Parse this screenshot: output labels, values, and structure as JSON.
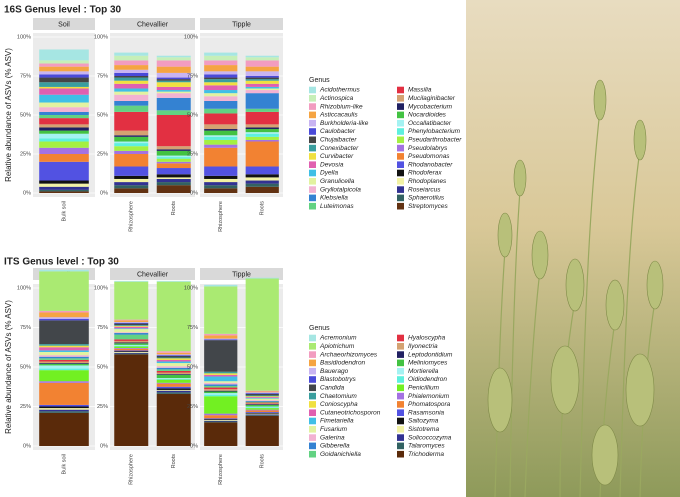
{
  "chart_data": [
    {
      "type": "bar",
      "stacked": true,
      "title": "16S Genus level : Top 30",
      "ylabel": "Relative abundance of ASVs (% ASV)",
      "legend_title": "Genus",
      "facets": [
        {
          "name": "Soil",
          "categories": [
            "Bulk soil"
          ]
        },
        {
          "name": "Chevallier",
          "categories": [
            "Rhizosphere",
            "Roots"
          ]
        },
        {
          "name": "Tipple",
          "categories": [
            "Rhizosphere",
            "Roots"
          ]
        }
      ],
      "ylim": [
        0,
        100
      ],
      "yticks": [
        {
          "value": 0,
          "label": "0%"
        },
        {
          "value": 25,
          "label": "25%"
        },
        {
          "value": 50,
          "label": "50%"
        },
        {
          "value": 75,
          "label": "75%"
        },
        {
          "value": 100,
          "label": "100%"
        }
      ],
      "series": [
        {
          "name": "Acidothermus",
          "color": "#a6e6e3",
          "values": [
            7,
            2,
            1,
            2,
            1
          ]
        },
        {
          "name": "Actinospica",
          "color": "#c6efb8",
          "values": [
            2,
            3,
            2,
            3,
            2
          ]
        },
        {
          "name": "Rhizobium-like",
          "color": "#f29cc0",
          "values": [
            2,
            3,
            4,
            3,
            4
          ]
        },
        {
          "name": "Asticcacaulis",
          "color": "#f5a442",
          "values": [
            3,
            3,
            4,
            4,
            3
          ]
        },
        {
          "name": "Burkholderia-like",
          "color": "#c8b4f2",
          "values": [
            2,
            2,
            3,
            2,
            3
          ]
        },
        {
          "name": "Caulobacter",
          "color": "#4a4ad8",
          "values": [
            2,
            2,
            1,
            2,
            1
          ]
        },
        {
          "name": "Chujaibacter",
          "color": "#454545",
          "values": [
            3,
            1,
            1,
            1,
            1
          ]
        },
        {
          "name": "Conexibacter",
          "color": "#3a9e9e",
          "values": [
            3,
            2,
            1,
            2,
            1
          ]
        },
        {
          "name": "Curvibacter",
          "color": "#f0e040",
          "values": [
            1,
            2,
            3,
            2,
            2
          ]
        },
        {
          "name": "Devosia",
          "color": "#e060b0",
          "values": [
            4,
            3,
            2,
            3,
            2
          ]
        },
        {
          "name": "Dyella",
          "color": "#40bfe6",
          "values": [
            5,
            2,
            1,
            2,
            1
          ]
        },
        {
          "name": "Granulicella",
          "color": "#e2f2a0",
          "values": [
            3,
            2,
            1,
            2,
            1
          ]
        },
        {
          "name": "Gryllotalpicola",
          "color": "#f2b2d2",
          "values": [
            3,
            4,
            3,
            3,
            2
          ]
        },
        {
          "name": "Klebsiella",
          "color": "#3482d2",
          "values": [
            2,
            3,
            8,
            5,
            10
          ]
        },
        {
          "name": "Luteimonas",
          "color": "#62d282",
          "values": [
            2,
            4,
            3,
            3,
            2
          ]
        },
        {
          "name": "Massilia",
          "color": "#e23042",
          "values": [
            4,
            12,
            20,
            7,
            8
          ]
        },
        {
          "name": "Mucilaginibacter",
          "color": "#d4a272",
          "values": [
            2,
            3,
            2,
            3,
            2
          ]
        },
        {
          "name": "Mycobacterium",
          "color": "#202062",
          "values": [
            2,
            1,
            1,
            1,
            1
          ]
        },
        {
          "name": "Nocardioides",
          "color": "#42c242",
          "values": [
            2,
            3,
            3,
            3,
            2
          ]
        },
        {
          "name": "Occallatibacter",
          "color": "#a4f2f2",
          "values": [
            3,
            1,
            1,
            1,
            1
          ]
        },
        {
          "name": "Phenylobacterium",
          "color": "#5ef0de",
          "values": [
            2,
            2,
            1,
            2,
            2
          ]
        },
        {
          "name": "Pseudarthrobacter",
          "color": "#a4f042",
          "values": [
            4,
            3,
            2,
            3,
            2
          ]
        },
        {
          "name": "Pseudolabrys",
          "color": "#a472e2",
          "values": [
            4,
            2,
            1,
            2,
            1
          ]
        },
        {
          "name": "Pseudomonas",
          "color": "#f28232",
          "values": [
            5,
            8,
            3,
            12,
            16
          ]
        },
        {
          "name": "Rhodanobacter",
          "color": "#5252e2",
          "values": [
            12,
            6,
            4,
            6,
            5
          ]
        },
        {
          "name": "Rhodoferax",
          "color": "#121212",
          "values": [
            2,
            2,
            2,
            2,
            2
          ]
        },
        {
          "name": "Rhodoplanes",
          "color": "#f2f2a4",
          "values": [
            2,
            2,
            1,
            2,
            2
          ]
        },
        {
          "name": "Roseiarcus",
          "color": "#323292",
          "values": [
            2,
            2,
            2,
            2,
            2
          ]
        },
        {
          "name": "Sphaerotilus",
          "color": "#326262",
          "values": [
            1,
            2,
            2,
            2,
            2
          ]
        },
        {
          "name": "Streptomyces",
          "color": "#623212",
          "values": [
            1,
            3,
            5,
            3,
            4
          ]
        }
      ]
    },
    {
      "type": "bar",
      "stacked": true,
      "title": "ITS Genus level : Top 30",
      "ylabel": "Relative abundance of ASVs (% ASV)",
      "legend_title": "Genus",
      "facets": [
        {
          "name": "Soil",
          "categories": [
            "Bulk soil"
          ]
        },
        {
          "name": "Chevallier",
          "categories": [
            "Rhizosphere",
            "Roots"
          ]
        },
        {
          "name": "Tipple",
          "categories": [
            "Rhizosphere",
            "Roots"
          ]
        }
      ],
      "ylim": [
        0,
        100
      ],
      "yticks": [
        {
          "value": 0,
          "label": "0%"
        },
        {
          "value": 25,
          "label": "25%"
        },
        {
          "value": 50,
          "label": "50%"
        },
        {
          "value": 75,
          "label": "75%"
        },
        {
          "value": 100,
          "label": "100%"
        }
      ],
      "series": [
        {
          "name": "Acremonium",
          "color": "#a6e6e3",
          "values": [
            1,
            0.5,
            0.5,
            1,
            0.5
          ]
        },
        {
          "name": "Apiotrichum",
          "color": "#aaea72",
          "values": [
            25,
            24,
            44,
            30,
            71
          ]
        },
        {
          "name": "Archaeorhizomyces",
          "color": "#f29cc0",
          "values": [
            1,
            0.5,
            1,
            1,
            0.5
          ]
        },
        {
          "name": "Basidiodendron",
          "color": "#f5a442",
          "values": [
            3,
            1,
            1,
            2,
            0.5
          ]
        },
        {
          "name": "Bauerago",
          "color": "#c8b4f2",
          "values": [
            1,
            0.5,
            0.5,
            0.5,
            0.5
          ]
        },
        {
          "name": "Blastobotrys",
          "color": "#4a4ad8",
          "values": [
            1,
            0.5,
            0.5,
            0.5,
            0.5
          ]
        },
        {
          "name": "Candida",
          "color": "#42464a",
          "values": [
            15,
            1,
            1,
            20,
            1
          ]
        },
        {
          "name": "Chaetomium",
          "color": "#3a9e9e",
          "values": [
            1,
            0.5,
            0.5,
            1,
            0.5
          ]
        },
        {
          "name": "Conioscypha",
          "color": "#f0e040",
          "values": [
            1,
            0.5,
            1,
            1,
            0.5
          ]
        },
        {
          "name": "Cutaneotrichosporon",
          "color": "#e060b0",
          "values": [
            2,
            1,
            1,
            1,
            0.5
          ]
        },
        {
          "name": "Fimetariella",
          "color": "#40bfe6",
          "values": [
            1,
            0.5,
            1,
            3,
            0.5
          ]
        },
        {
          "name": "Fusarium",
          "color": "#e2f2a0",
          "values": [
            2,
            2,
            2,
            1,
            1
          ]
        },
        {
          "name": "Galerina",
          "color": "#f2b2d2",
          "values": [
            1,
            0.5,
            1,
            1,
            0.5
          ]
        },
        {
          "name": "Gibberella",
          "color": "#3482d2",
          "values": [
            1,
            1,
            1,
            1,
            0.5
          ]
        },
        {
          "name": "Goidanichiella",
          "color": "#62d282",
          "values": [
            1,
            3,
            1,
            1,
            0.5
          ]
        },
        {
          "name": "Hyaloscypha",
          "color": "#e23042",
          "values": [
            1,
            1,
            1,
            1,
            0.5
          ]
        },
        {
          "name": "Ilyonectria",
          "color": "#d4a272",
          "values": [
            1,
            1,
            1,
            1,
            0.5
          ]
        },
        {
          "name": "Leptodontidium",
          "color": "#202062",
          "values": [
            0.5,
            0.5,
            0.5,
            0.5,
            0.5
          ]
        },
        {
          "name": "Meliniomyces",
          "color": "#42c242",
          "values": [
            1,
            1,
            2,
            1,
            1
          ]
        },
        {
          "name": "Mortierella",
          "color": "#a4f2f2",
          "values": [
            2,
            0.5,
            0.5,
            1,
            0.5
          ]
        },
        {
          "name": "Oidiodendron",
          "color": "#5ef0de",
          "values": [
            1,
            0.5,
            0.5,
            1,
            0.5
          ]
        },
        {
          "name": "Penicillium",
          "color": "#72f022",
          "values": [
            7,
            1,
            2,
            11,
            1
          ]
        },
        {
          "name": "Phialemonium",
          "color": "#a472e2",
          "values": [
            1,
            0.5,
            0.5,
            1,
            0.5
          ]
        },
        {
          "name": "Phomatospora",
          "color": "#f28232",
          "values": [
            14,
            1,
            2,
            2,
            1
          ]
        },
        {
          "name": "Rasamsonia",
          "color": "#5252e2",
          "values": [
            1,
            0.5,
            1,
            0.5,
            0.5
          ]
        },
        {
          "name": "Saitozyma",
          "color": "#121212",
          "values": [
            1,
            0.5,
            1,
            0.5,
            0.5
          ]
        },
        {
          "name": "Sistotrema",
          "color": "#f2f2a4",
          "values": [
            1,
            0.5,
            0.5,
            0.5,
            0.5
          ]
        },
        {
          "name": "Solicoccozyma",
          "color": "#323292",
          "values": [
            1,
            0.5,
            1,
            0.5,
            0.5
          ]
        },
        {
          "name": "Talaromyces",
          "color": "#326262",
          "values": [
            1,
            0.5,
            1,
            0.5,
            0.5
          ]
        },
        {
          "name": "Trichoderma",
          "color": "#5a2a0a",
          "values": [
            21,
            58,
            33,
            15,
            19
          ]
        }
      ]
    }
  ]
}
